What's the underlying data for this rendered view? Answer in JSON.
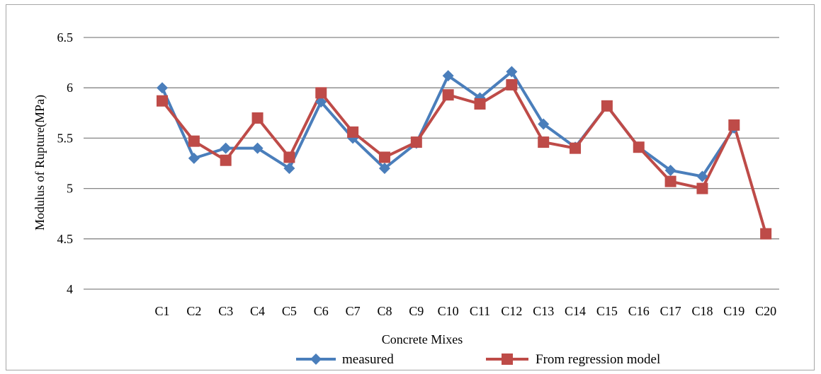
{
  "chart_data": {
    "type": "line",
    "title": "",
    "xlabel": "Concrete Mixes",
    "ylabel": "Modulus of Rupture(MPa)",
    "ylim": [
      4,
      6.5
    ],
    "yticks": [
      "4",
      "4.5",
      "5",
      "5.5",
      "6",
      "6.5"
    ],
    "grid": true,
    "legend_position": "bottom",
    "categories": [
      "C1",
      "C2",
      "C3",
      "C4",
      "C5",
      "C6",
      "C7",
      "C8",
      "C9",
      "C10",
      "C11",
      "C12",
      "C13",
      "C14",
      "C15",
      "C16",
      "C17",
      "C18",
      "C19",
      "C20"
    ],
    "series": [
      {
        "name": "measured",
        "color": "#4a7ebb",
        "marker": "diamond",
        "values": [
          6.0,
          5.3,
          5.4,
          5.4,
          5.2,
          5.86,
          5.5,
          5.2,
          5.45,
          6.12,
          5.9,
          6.16,
          5.64,
          5.41,
          5.82,
          5.41,
          5.18,
          5.12,
          5.6,
          null
        ]
      },
      {
        "name": "From regression model",
        "color": "#be4b48",
        "marker": "square",
        "values": [
          5.87,
          5.47,
          5.28,
          5.7,
          5.31,
          5.95,
          5.56,
          5.31,
          5.46,
          5.93,
          5.84,
          6.03,
          5.46,
          5.4,
          5.82,
          5.41,
          5.07,
          5.0,
          5.63,
          4.55
        ]
      }
    ]
  }
}
